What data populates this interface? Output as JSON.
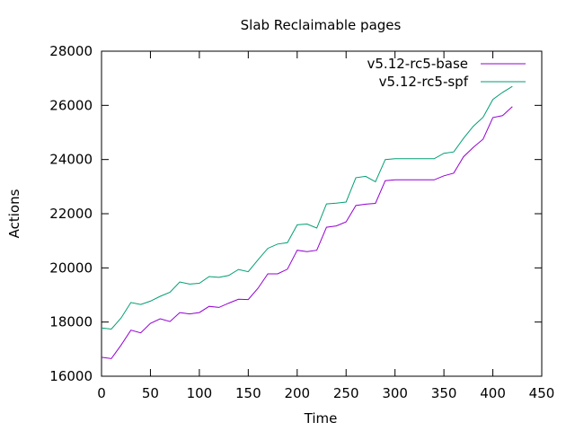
{
  "chart_data": {
    "type": "line",
    "title": "Slab Reclaimable pages",
    "xlabel": "Time",
    "ylabel": "Actions",
    "xlim": [
      0,
      450
    ],
    "ylim": [
      16000,
      28000
    ],
    "xticks": [
      0,
      50,
      100,
      150,
      200,
      250,
      300,
      350,
      400,
      450
    ],
    "yticks": [
      16000,
      18000,
      20000,
      22000,
      24000,
      26000,
      28000
    ],
    "xtick_labels": [
      "0",
      "50",
      "100",
      "150",
      "200",
      "250",
      "300",
      "350",
      "400",
      "450"
    ],
    "ytick_labels": [
      "16000",
      "18000",
      "20000",
      "22000",
      "24000",
      "26000",
      "28000"
    ],
    "grid": false,
    "legend_position": "top-right",
    "x": [
      0,
      10,
      20,
      30,
      40,
      50,
      60,
      70,
      80,
      90,
      100,
      110,
      120,
      130,
      140,
      150,
      160,
      170,
      180,
      190,
      200,
      210,
      220,
      230,
      240,
      250,
      260,
      270,
      280,
      290,
      300,
      310,
      320,
      330,
      340,
      350,
      360,
      370,
      380,
      390,
      400,
      410,
      420
    ],
    "series": [
      {
        "name": "v5.12-rc5-base",
        "color": "#9400d3",
        "values": [
          16700,
          16650,
          17150,
          17700,
          17600,
          17950,
          18120,
          18020,
          18350,
          18300,
          18350,
          18580,
          18540,
          18700,
          18840,
          18830,
          19250,
          19780,
          19780,
          19950,
          20650,
          20600,
          20650,
          21500,
          21550,
          21700,
          22300,
          22350,
          22380,
          23220,
          23250,
          23250,
          23250,
          23250,
          23250,
          23400,
          23500,
          24100,
          24450,
          24750,
          25550,
          25620,
          25950
        ]
      },
      {
        "name": "v5.12-rc5-spf",
        "color": "#009e73",
        "values": [
          17780,
          17740,
          18150,
          18720,
          18650,
          18770,
          18950,
          19100,
          19480,
          19400,
          19430,
          19680,
          19650,
          19720,
          19940,
          19860,
          20300,
          20720,
          20880,
          20930,
          21590,
          21620,
          21470,
          22360,
          22390,
          22430,
          23330,
          23380,
          23180,
          24000,
          24030,
          24030,
          24030,
          24030,
          24030,
          24230,
          24280,
          24780,
          25230,
          25560,
          26220,
          26480,
          26700
        ]
      }
    ]
  }
}
